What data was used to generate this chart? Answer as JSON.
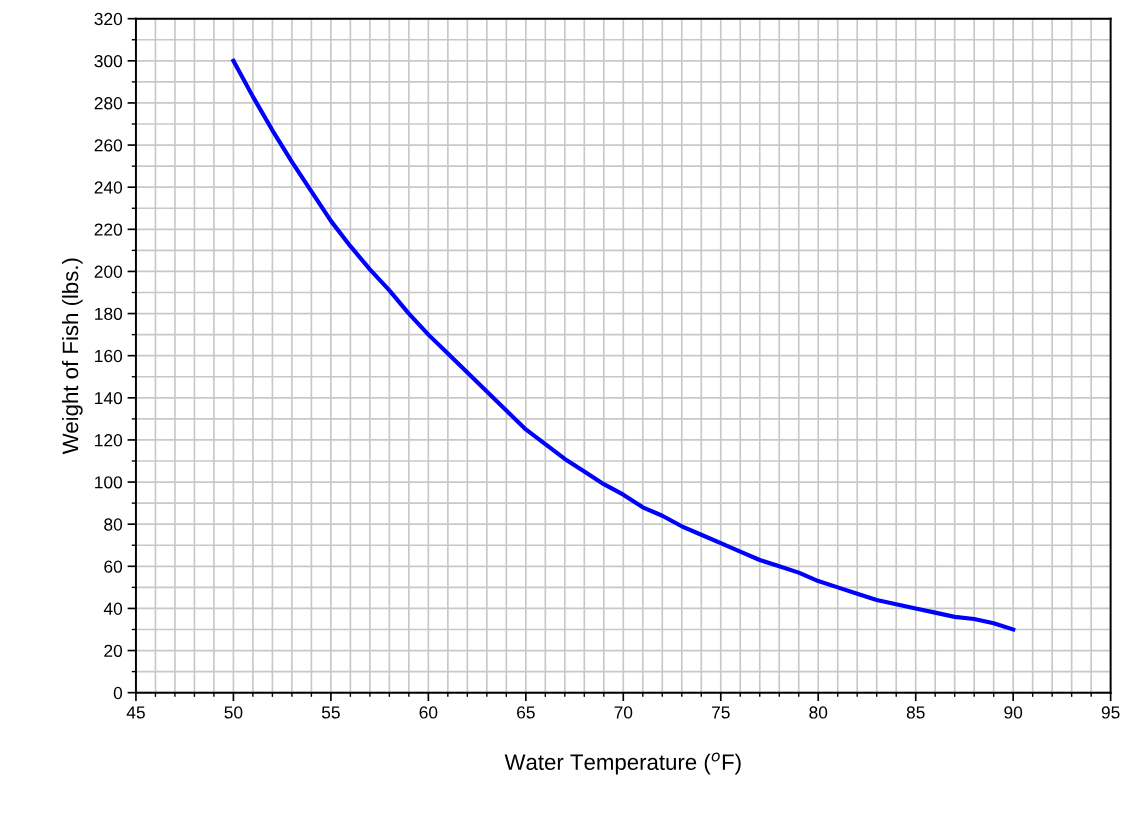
{
  "chart_data": {
    "type": "line",
    "xlabel": "Water Temperature ($^{o}$F)",
    "ylabel": "Weight of Fish (lbs.)",
    "x": [
      50,
      51,
      52,
      53,
      54,
      55,
      56,
      57,
      58,
      59,
      60,
      61,
      62,
      63,
      64,
      65,
      66,
      67,
      68,
      69,
      70,
      71,
      72,
      73,
      74,
      75,
      76,
      77,
      78,
      79,
      80,
      81,
      82,
      83,
      84,
      85,
      86,
      87,
      88,
      89,
      90
    ],
    "series": [
      {
        "color": "#0000ff",
        "values": [
          300,
          283,
          267,
          252,
          238,
          224,
          212,
          201,
          191,
          180,
          170,
          161,
          152,
          143,
          134,
          125,
          118,
          111,
          105,
          99,
          94,
          88,
          84,
          79,
          75,
          71,
          67,
          63,
          60,
          57,
          53,
          50,
          47,
          44,
          42,
          40,
          38,
          36,
          35,
          33,
          30
        ]
      }
    ],
    "xlim": [
      45,
      95
    ],
    "xticks": [
      45,
      50,
      55,
      60,
      65,
      70,
      75,
      80,
      85,
      90,
      95
    ],
    "ylim": [
      0,
      320
    ],
    "yticks": [
      0,
      20,
      40,
      60,
      80,
      100,
      120,
      140,
      160,
      180,
      200,
      220,
      240,
      260,
      280,
      300,
      320
    ],
    "grid": true,
    "marker": "none",
    "line_style": "solid"
  }
}
